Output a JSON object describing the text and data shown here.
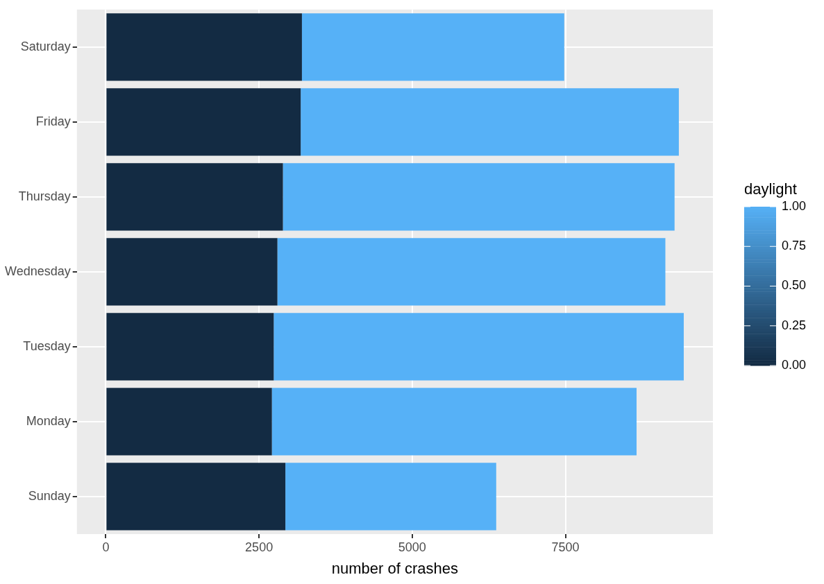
{
  "chart_data": {
    "type": "bar",
    "orientation": "horizontal",
    "stacked": true,
    "xlabel": "number of crashes",
    "clabel": "daylight",
    "categories": [
      "Saturday",
      "Friday",
      "Thursday",
      "Wednesday",
      "Tuesday",
      "Monday",
      "Sunday"
    ],
    "series": [
      {
        "color": "#132b43",
        "values": [
          3200,
          3180,
          2890,
          2800,
          2740,
          2710,
          2930
        ]
      },
      {
        "color": "#56b1f7",
        "values": [
          4280,
          6170,
          6390,
          6330,
          6690,
          5950,
          3440
        ]
      }
    ],
    "xlim": [
      -472,
      9906
    ],
    "xticks": [
      0,
      2500,
      5000,
      7500
    ],
    "clim": [
      0,
      1
    ],
    "cticks": [
      {
        "value": 0,
        "label": "0.00"
      },
      {
        "value": 0.25,
        "label": "0.25"
      },
      {
        "value": 0.5,
        "label": "0.50"
      },
      {
        "value": 0.75,
        "label": "0.75"
      },
      {
        "value": 1,
        "label": "1.00"
      }
    ],
    "grid": true,
    "legend": false
  }
}
